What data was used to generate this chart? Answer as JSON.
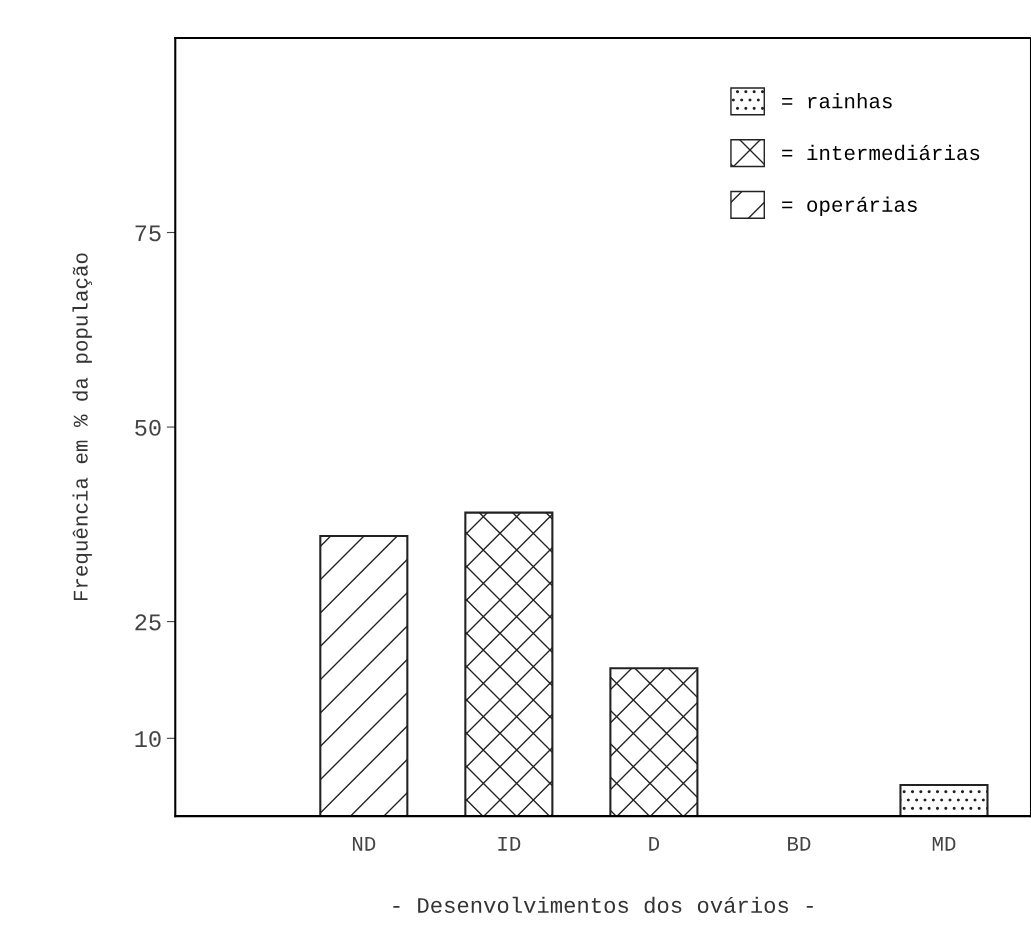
{
  "chart_data": {
    "type": "bar",
    "xlabel": "- Desenvolvimentos dos ovários -",
    "ylabel": "Frequência em % da população",
    "categories": [
      "ND",
      "ID",
      "D",
      "BD",
      "MD"
    ],
    "series": [
      {
        "name": "= rainhas",
        "color": "#222222",
        "values": [
          null,
          null,
          null,
          null,
          4
        ]
      },
      {
        "name": "= intermediárias",
        "color": "#222222",
        "values": [
          null,
          39,
          19,
          null,
          null
        ]
      },
      {
        "name": "= operárias",
        "color": "#222222",
        "values": [
          36,
          null,
          null,
          null,
          null
        ]
      }
    ],
    "ylim": [
      0,
      100
    ],
    "yticks": [
      10,
      25,
      50,
      75
    ],
    "grid": false,
    "legend": "top right"
  }
}
